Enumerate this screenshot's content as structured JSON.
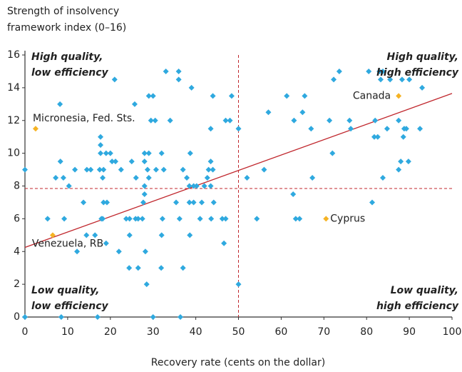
{
  "chart_data": {
    "type": "scatter",
    "y_label": [
      "Strength of insolvency",
      "framework index (0–16)"
    ],
    "x_label": "Recovery rate (cents on the dollar)",
    "xlim": [
      0,
      100
    ],
    "xticks": [
      0,
      10,
      20,
      30,
      40,
      50,
      60,
      70,
      80,
      90,
      100
    ],
    "ylim": [
      0,
      16
    ],
    "yticks": [
      0,
      2,
      4,
      6,
      8,
      10,
      12,
      14,
      16
    ],
    "color": "#2fa9df",
    "highlight_color": "#f5b324",
    "line_color": "#c0272d",
    "quadrant_labels": [
      [
        "High quality,",
        "low efficiency"
      ],
      [
        "High quality,",
        "high efficiency"
      ],
      [
        "Low quality,",
        "low efficiency"
      ],
      [
        "Low quality,",
        "high efficiency"
      ]
    ],
    "reference_lines": {
      "x": 50,
      "y": 7.85
    },
    "trend": {
      "x": [
        0,
        100
      ],
      "y": [
        4.25,
        13.65
      ]
    },
    "highlights": [
      {
        "name": "Micronesia, Fed. Sts.",
        "x": 2.5,
        "y": 11.5
      },
      {
        "name": "Venezuela, RB",
        "x": 6.5,
        "y": 5
      },
      {
        "name": "Cyprus",
        "x": 70.5,
        "y": 6
      },
      {
        "name": "Canada",
        "x": 87.5,
        "y": 13.5
      }
    ],
    "x": [
      0,
      0,
      8.5,
      17,
      30,
      36.4,
      8.2,
      21,
      33,
      36,
      36,
      39,
      25.7,
      29,
      30,
      44,
      48.4,
      34,
      29.5,
      30.5,
      43.5,
      47,
      48,
      50,
      17.7,
      17.7,
      17.7,
      19,
      20,
      28,
      29,
      32,
      38.7,
      20.4,
      21.2,
      8.3,
      11.7,
      14.5,
      15.4,
      17.5,
      18.4,
      22.5,
      25,
      28,
      28.7,
      30.7,
      32.5,
      37,
      43,
      44,
      43.5,
      7.2,
      9,
      18.2,
      26,
      29,
      37.9,
      42.7,
      10.3,
      28,
      38.5,
      39.5,
      40.2,
      42,
      43.5,
      13.7,
      18.4,
      19.2,
      28,
      27.7,
      35.4,
      38.5,
      39.5,
      41.4,
      44.2,
      5.3,
      9.2,
      17.9,
      18.2,
      23.7,
      24.5,
      25.9,
      26.5,
      27.5,
      32.2,
      36.2,
      41,
      43.6,
      46.2,
      47,
      14.4,
      16.4,
      24.5,
      32,
      38.6,
      12.2,
      19,
      22,
      28.2,
      46.6,
      24.4,
      26.5,
      31.9,
      37,
      28.5,
      50,
      73.6,
      72.3,
      80.5,
      83,
      83.8,
      83.3,
      85.5,
      88.3,
      90,
      93,
      61.3,
      65.5,
      65,
      57,
      63,
      71.3,
      76,
      82,
      87.5,
      67,
      76.3,
      84.8,
      88.8,
      89.3,
      92.5,
      81.8,
      82.6,
      88.6,
      72,
      88,
      89.8,
      56,
      87.5,
      52,
      67.3,
      83.8,
      62.8,
      81.3,
      54.3,
      63.4,
      64.3
    ],
    "values": [
      9,
      0,
      0,
      0,
      0,
      0,
      13,
      14.5,
      15,
      15,
      14.5,
      14,
      13,
      13.5,
      13.5,
      13.5,
      13.5,
      12,
      12,
      12,
      11.5,
      12,
      12,
      11.5,
      11,
      10.5,
      10,
      10,
      10,
      10,
      10,
      10,
      10,
      9.5,
      9.5,
      9.5,
      9,
      9,
      9,
      9,
      9,
      9,
      9.5,
      9.5,
      9,
      9,
      9,
      9,
      9,
      9,
      9.5,
      8.5,
      8.5,
      8.5,
      8.5,
      8.5,
      8.5,
      8.5,
      8,
      8,
      8,
      8,
      8,
      8,
      8,
      7,
      7,
      7,
      7.5,
      7,
      7,
      7,
      7,
      7,
      7,
      6,
      6,
      6,
      6,
      6,
      6,
      6,
      6,
      6,
      6,
      6,
      6,
      6,
      6,
      6,
      5,
      5,
      5,
      5,
      5,
      4,
      4.5,
      4,
      4,
      4.5,
      3,
      3,
      3,
      3,
      2,
      2,
      15,
      14.5,
      15,
      15,
      15,
      14.5,
      14.5,
      14.5,
      14.5,
      14,
      13.5,
      13.5,
      12.5,
      12.5,
      12,
      12,
      12,
      12,
      12,
      11.5,
      11.5,
      11.5,
      11.5,
      11.5,
      11.5,
      11,
      11,
      11,
      10,
      9.5,
      9.5,
      9,
      9,
      8.5,
      8.5,
      8.5,
      7.5,
      7,
      6,
      6,
      6
    ]
  }
}
